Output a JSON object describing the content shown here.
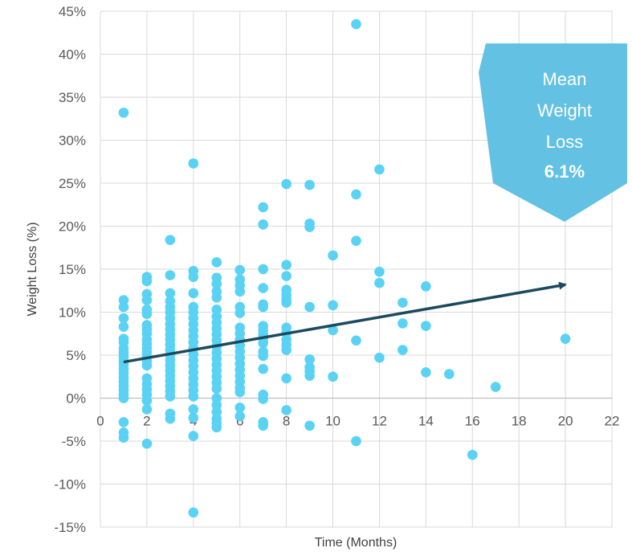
{
  "chart_data": {
    "type": "scatter",
    "title": "",
    "xlabel": "Time (Months)",
    "ylabel": "Weight Loss (%)",
    "xlim": [
      0,
      22
    ],
    "ylim": [
      -15,
      45
    ],
    "x_ticks": [
      0,
      2,
      4,
      6,
      8,
      10,
      12,
      14,
      16,
      18,
      20,
      22
    ],
    "y_ticks": [
      -15,
      -10,
      -5,
      0,
      5,
      10,
      15,
      20,
      25,
      30,
      35,
      40,
      45
    ],
    "y_tick_format": "percent",
    "grid": true,
    "colors": {
      "points": "#5ad2f4",
      "trend": "#1b4a5e",
      "callout": "#63c1e3",
      "grid": "#d9d9d9"
    },
    "series": [
      {
        "points": [
          [
            1,
            33.2
          ],
          [
            1,
            11.4
          ],
          [
            1,
            10.6
          ],
          [
            1,
            9.3
          ],
          [
            1,
            8.3
          ],
          [
            1,
            6.9
          ],
          [
            1,
            6.5
          ],
          [
            1,
            5.8
          ],
          [
            1,
            5.3
          ],
          [
            1,
            4.8
          ],
          [
            1,
            4.3
          ],
          [
            1,
            3.9
          ],
          [
            1,
            3.4
          ],
          [
            1,
            2.9
          ],
          [
            1,
            2.4
          ],
          [
            1,
            1.9
          ],
          [
            1,
            1.4
          ],
          [
            1,
            0.9
          ],
          [
            1,
            0.4
          ],
          [
            1,
            0.0
          ],
          [
            1,
            -2.8
          ],
          [
            1,
            -4.0
          ],
          [
            1,
            -4.6
          ],
          [
            2,
            14.1
          ],
          [
            2,
            13.6
          ],
          [
            2,
            12.1
          ],
          [
            2,
            11.4
          ],
          [
            2,
            10.3
          ],
          [
            2,
            9.8
          ],
          [
            2,
            8.5
          ],
          [
            2,
            8.0
          ],
          [
            2,
            7.5
          ],
          [
            2,
            6.8
          ],
          [
            2,
            6.3
          ],
          [
            2,
            5.8
          ],
          [
            2,
            5.3
          ],
          [
            2,
            4.8
          ],
          [
            2,
            4.3
          ],
          [
            2,
            3.8
          ],
          [
            2,
            2.3
          ],
          [
            2,
            1.6
          ],
          [
            2,
            1.0
          ],
          [
            2,
            0.4
          ],
          [
            2,
            -0.3
          ],
          [
            2,
            -1.3
          ],
          [
            2,
            -5.3
          ],
          [
            3,
            18.4
          ],
          [
            3,
            14.3
          ],
          [
            3,
            12.2
          ],
          [
            3,
            11.3
          ],
          [
            3,
            10.6
          ],
          [
            3,
            10.0
          ],
          [
            3,
            9.3
          ],
          [
            3,
            8.6
          ],
          [
            3,
            8.0
          ],
          [
            3,
            7.4
          ],
          [
            3,
            6.8
          ],
          [
            3,
            6.2
          ],
          [
            3,
            5.6
          ],
          [
            3,
            5.0
          ],
          [
            3,
            4.4
          ],
          [
            3,
            3.8
          ],
          [
            3,
            3.2
          ],
          [
            3,
            2.6
          ],
          [
            3,
            2.0
          ],
          [
            3,
            1.4
          ],
          [
            3,
            0.8
          ],
          [
            3,
            0.2
          ],
          [
            3,
            -1.8
          ],
          [
            3,
            -2.4
          ],
          [
            4,
            27.3
          ],
          [
            4,
            14.8
          ],
          [
            4,
            14.1
          ],
          [
            4,
            12.2
          ],
          [
            4,
            10.6
          ],
          [
            4,
            10.0
          ],
          [
            4,
            9.3
          ],
          [
            4,
            8.6
          ],
          [
            4,
            7.9
          ],
          [
            4,
            7.2
          ],
          [
            4,
            6.5
          ],
          [
            4,
            5.8
          ],
          [
            4,
            5.1
          ],
          [
            4,
            4.4
          ],
          [
            4,
            3.7
          ],
          [
            4,
            3.0
          ],
          [
            4,
            2.3
          ],
          [
            4,
            1.6
          ],
          [
            4,
            0.9
          ],
          [
            4,
            0.2
          ],
          [
            4,
            -1.3
          ],
          [
            4,
            -2.3
          ],
          [
            4,
            -4.4
          ],
          [
            4,
            -13.3
          ],
          [
            5,
            15.8
          ],
          [
            5,
            14.0
          ],
          [
            5,
            13.3
          ],
          [
            5,
            12.4
          ],
          [
            5,
            11.7
          ],
          [
            5,
            10.3
          ],
          [
            5,
            9.5
          ],
          [
            5,
            8.8
          ],
          [
            5,
            8.1
          ],
          [
            5,
            7.4
          ],
          [
            5,
            6.7
          ],
          [
            5,
            6.0
          ],
          [
            5,
            5.3
          ],
          [
            5,
            4.6
          ],
          [
            5,
            3.9
          ],
          [
            5,
            3.2
          ],
          [
            5,
            2.5
          ],
          [
            5,
            1.8
          ],
          [
            5,
            1.1
          ],
          [
            5,
            0.0
          ],
          [
            5,
            -0.8
          ],
          [
            5,
            -1.6
          ],
          [
            5,
            -2.4
          ],
          [
            5,
            -2.9
          ],
          [
            5,
            -3.4
          ],
          [
            6,
            14.9
          ],
          [
            6,
            13.8
          ],
          [
            6,
            13.1
          ],
          [
            6,
            12.4
          ],
          [
            6,
            10.6
          ],
          [
            6,
            9.9
          ],
          [
            6,
            8.2
          ],
          [
            6,
            7.5
          ],
          [
            6,
            6.8
          ],
          [
            6,
            6.1
          ],
          [
            6,
            5.4
          ],
          [
            6,
            4.7
          ],
          [
            6,
            4.0
          ],
          [
            6,
            3.3
          ],
          [
            6,
            2.6
          ],
          [
            6,
            1.9
          ],
          [
            6,
            1.2
          ],
          [
            6,
            0.7
          ],
          [
            6,
            -1.1
          ],
          [
            6,
            -2.1
          ],
          [
            7,
            22.2
          ],
          [
            7,
            20.2
          ],
          [
            7,
            15.0
          ],
          [
            7,
            12.8
          ],
          [
            7,
            10.9
          ],
          [
            7,
            10.6
          ],
          [
            7,
            8.4
          ],
          [
            7,
            7.9
          ],
          [
            7,
            7.4
          ],
          [
            7,
            6.9
          ],
          [
            7,
            6.4
          ],
          [
            7,
            5.4
          ],
          [
            7,
            4.9
          ],
          [
            7,
            3.4
          ],
          [
            7,
            0.4
          ],
          [
            7,
            -0.1
          ],
          [
            7,
            -2.8
          ],
          [
            7,
            -3.2
          ],
          [
            8,
            24.9
          ],
          [
            8,
            15.5
          ],
          [
            8,
            14.2
          ],
          [
            8,
            12.6
          ],
          [
            8,
            12.0
          ],
          [
            8,
            11.5
          ],
          [
            8,
            11.1
          ],
          [
            8,
            8.2
          ],
          [
            8,
            7.6
          ],
          [
            8,
            6.8
          ],
          [
            8,
            6.2
          ],
          [
            8,
            5.6
          ],
          [
            8,
            2.3
          ],
          [
            8,
            -1.4
          ],
          [
            9,
            24.8
          ],
          [
            9,
            20.3
          ],
          [
            9,
            19.9
          ],
          [
            9,
            10.6
          ],
          [
            9,
            4.5
          ],
          [
            9,
            3.6
          ],
          [
            9,
            3.1
          ],
          [
            9,
            2.6
          ],
          [
            9,
            -3.2
          ],
          [
            10,
            16.6
          ],
          [
            10,
            10.8
          ],
          [
            10,
            7.9
          ],
          [
            10,
            2.5
          ],
          [
            11,
            43.5
          ],
          [
            11,
            23.7
          ],
          [
            11,
            18.3
          ],
          [
            11,
            6.7
          ],
          [
            11,
            -5.0
          ],
          [
            12,
            26.6
          ],
          [
            12,
            14.7
          ],
          [
            12,
            13.4
          ],
          [
            12,
            4.7
          ],
          [
            13,
            11.1
          ],
          [
            13,
            8.7
          ],
          [
            13,
            5.6
          ],
          [
            14,
            13.0
          ],
          [
            14,
            8.4
          ],
          [
            14,
            3.0
          ],
          [
            15,
            2.8
          ],
          [
            16,
            -6.6
          ],
          [
            17,
            1.3
          ],
          [
            20,
            6.9
          ]
        ]
      }
    ],
    "trend_line": {
      "x1": 1,
      "y1": 4.2,
      "x2": 20,
      "y2": 13.2
    },
    "callout": {
      "line1": "Mean",
      "line2": "Weight",
      "line3": "Loss",
      "value": "6.1%"
    }
  }
}
